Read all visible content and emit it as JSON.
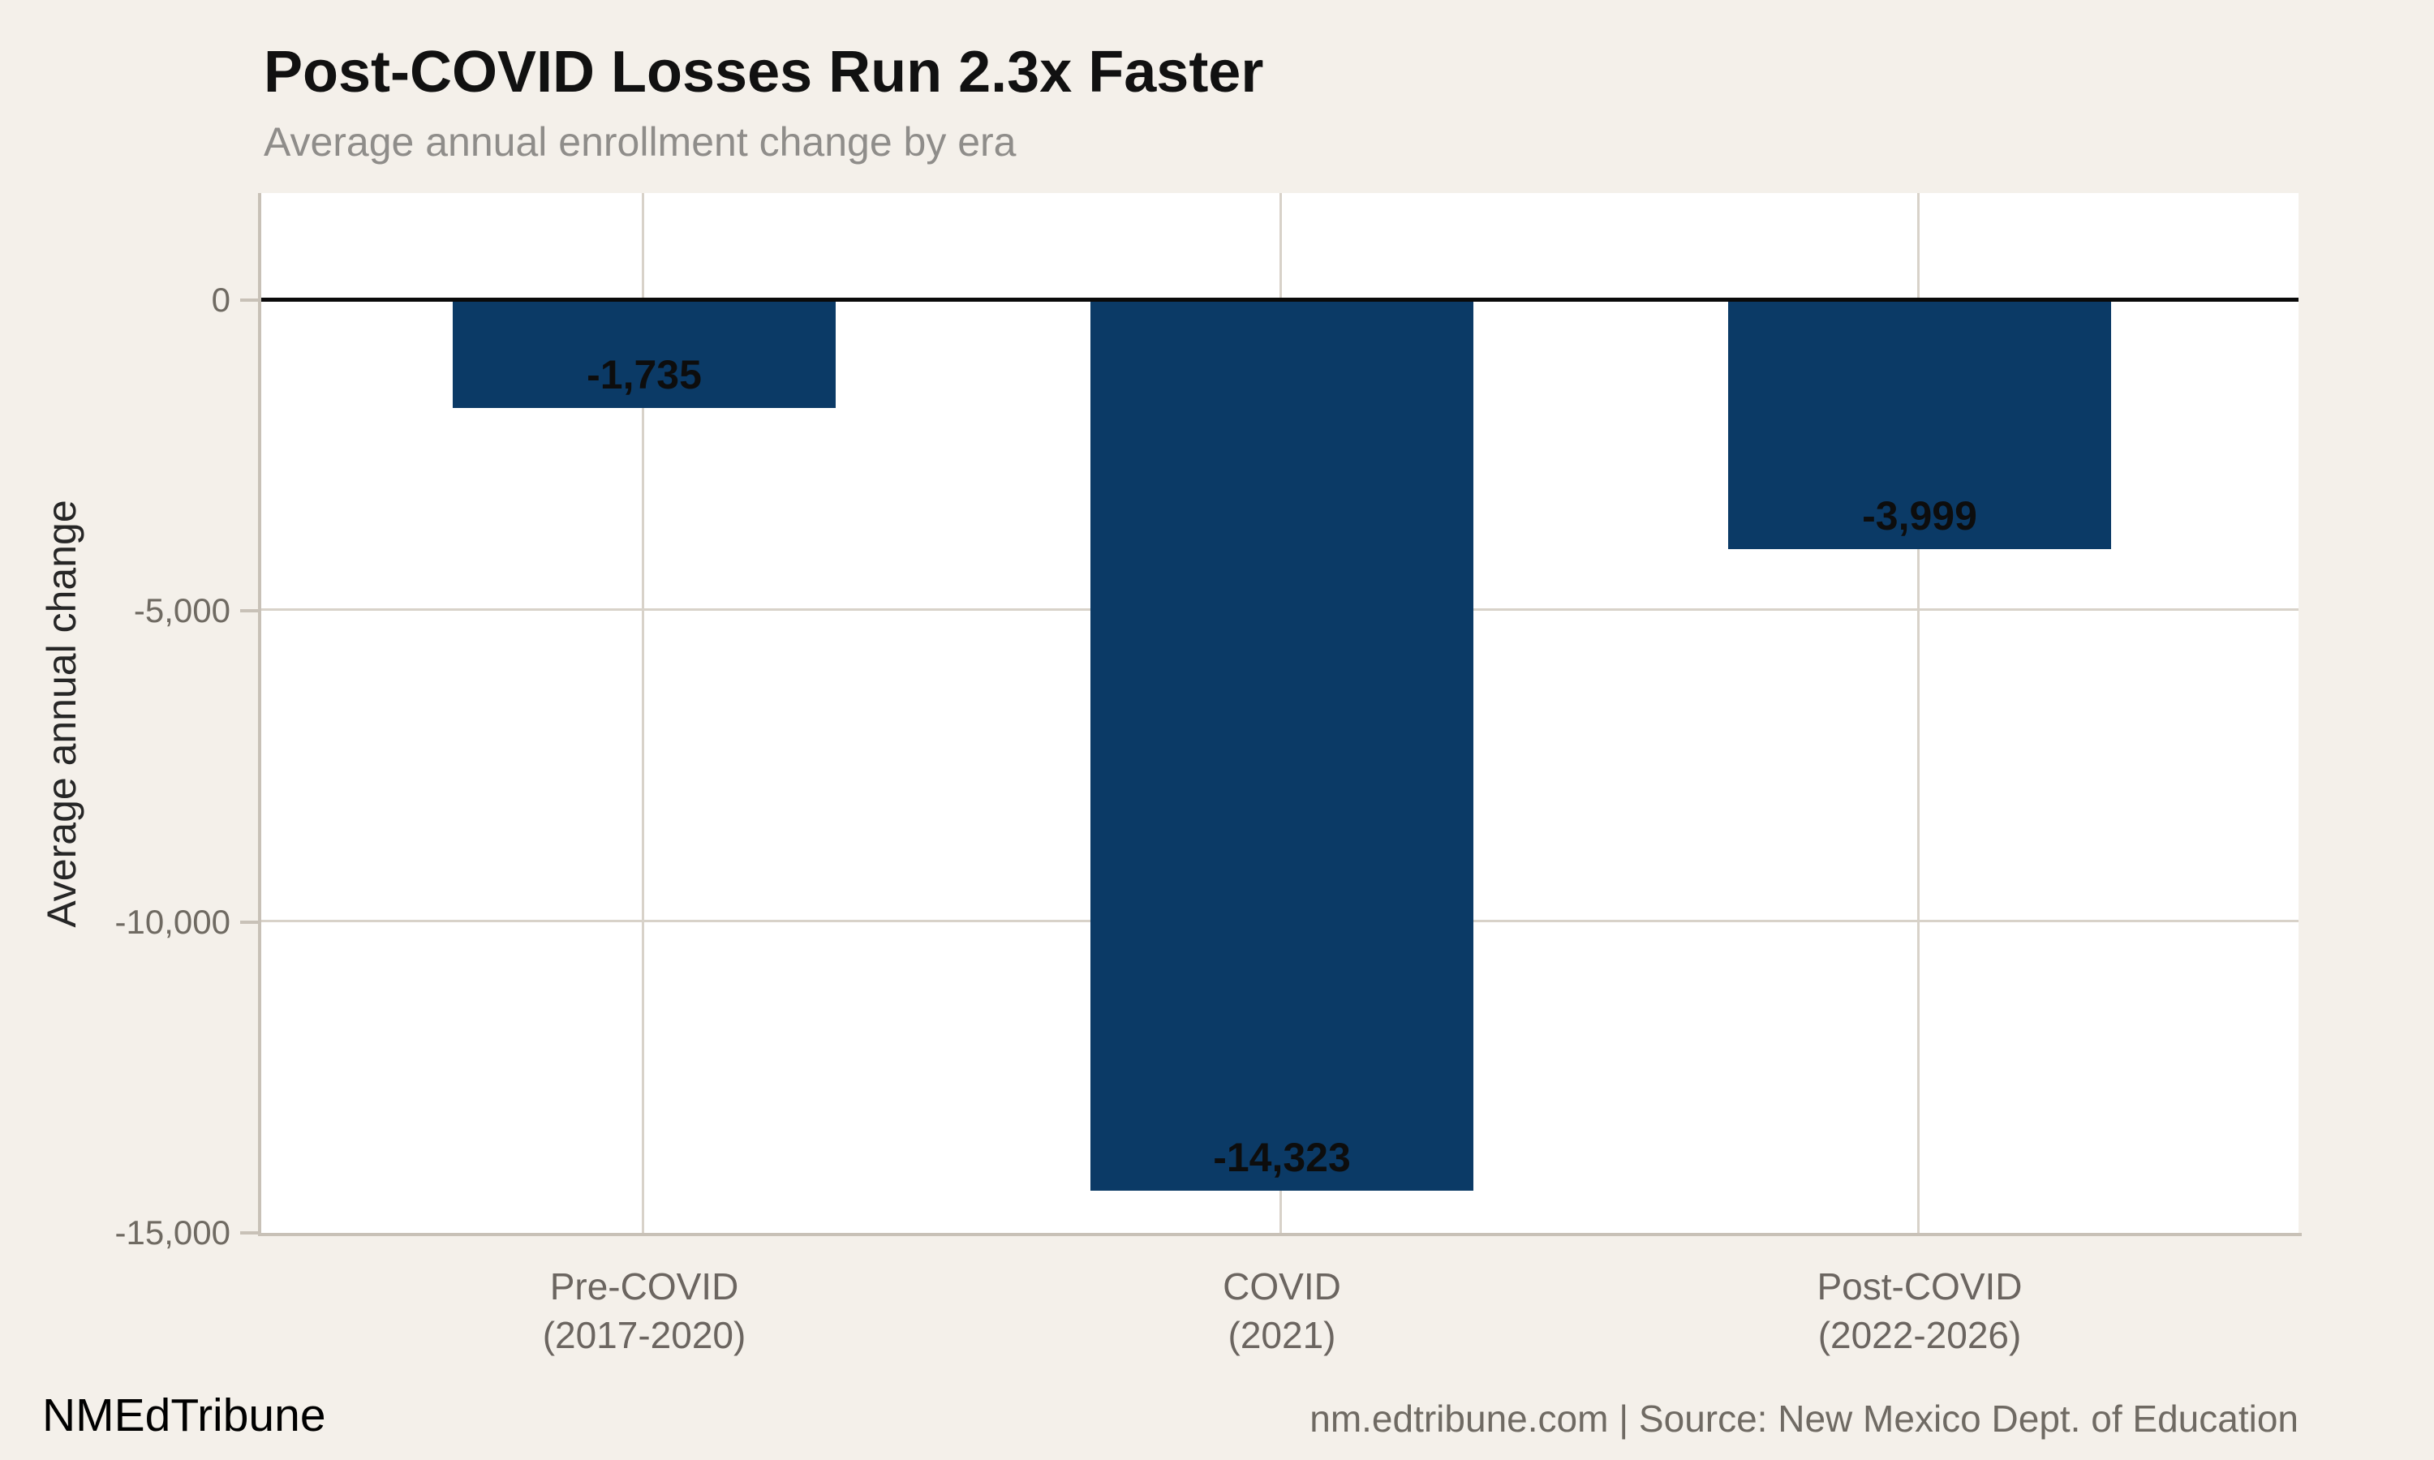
{
  "header": {
    "title": "Post-COVID Losses Run 2.3x Faster",
    "subtitle": "Average annual enrollment change by era"
  },
  "chart_data": {
    "type": "bar",
    "title": "Post-COVID Losses Run 2.3x Faster",
    "subtitle": "Average annual enrollment change by era",
    "categories": [
      "Pre-COVID",
      "COVID",
      "Post-COVID"
    ],
    "category_periods": [
      "(2017-2020)",
      "(2021)",
      "(2022-2026)"
    ],
    "values": [
      -1735,
      -14323,
      -3999
    ],
    "value_labels": [
      "-1,735",
      "-14,323",
      "-3,999"
    ],
    "xlabel": "",
    "ylabel": "Average annual change",
    "ylim": [
      -15000,
      0
    ],
    "y_ticks": [
      {
        "value": 0,
        "label": "0"
      },
      {
        "value": -5000,
        "label": "-5,000"
      },
      {
        "value": -10000,
        "label": "-10,000"
      },
      {
        "value": -15000,
        "label": "-15,000"
      }
    ],
    "grid": true,
    "legend_position": "none",
    "bar_color": "#0b3a66"
  },
  "colors": {
    "background": "#f4f0ea",
    "plot_background": "#ffffff",
    "bar": "#0b3a66",
    "gridline": "#d8d2c9",
    "axis_line": "#c8c1b7",
    "zero_line": "#0a0a0a",
    "title_text": "#111111",
    "subtitle_text": "#8f8d8a",
    "tick_text": "#6f6a62",
    "value_label_text": "#0d0d0d",
    "footer_text": "#6f6a63"
  },
  "footer": {
    "brand": "NMEdTribune",
    "source": "nm.edtribune.com | Source: New Mexico Dept. of Education"
  }
}
